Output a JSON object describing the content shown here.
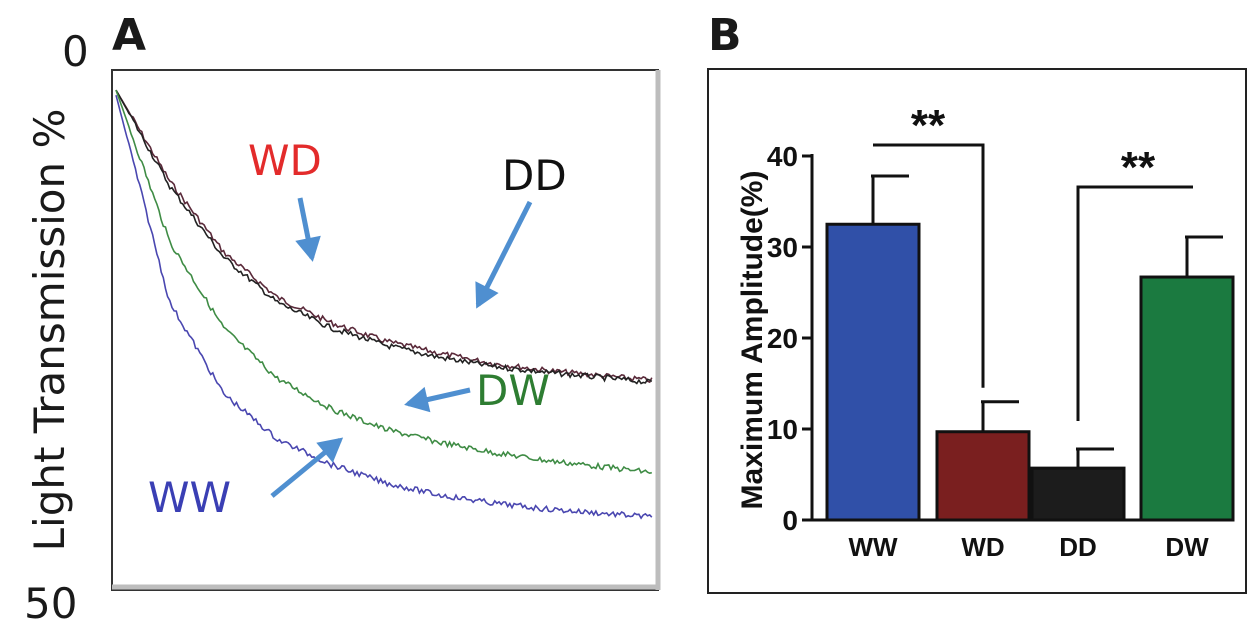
{
  "chart_data": [
    {
      "panel": "A",
      "type": "line",
      "ylabel": "Light Transmission %",
      "y_ticks": [
        "0",
        "50"
      ],
      "ylim": [
        0,
        50
      ],
      "y_inverted": true,
      "x_ticks": [],
      "grid": false,
      "legend": "inline labels with arrows",
      "series": [
        {
          "name": "WD",
          "color": "#e32b2b",
          "line_color": "#5a2a3a",
          "x": [
            0,
            10,
            20,
            30,
            40,
            50,
            60,
            70,
            80,
            90,
            100
          ],
          "values": [
            1,
            10,
            17,
            21.5,
            24,
            25.8,
            27,
            28,
            28.7,
            29.2,
            29.7
          ]
        },
        {
          "name": "DD",
          "color": "#111111",
          "line_color": "#222222",
          "x": [
            0,
            10,
            20,
            30,
            40,
            50,
            60,
            70,
            80,
            90,
            100
          ],
          "values": [
            1,
            10.5,
            17.5,
            22,
            24.5,
            26.2,
            27.4,
            28.3,
            28.9,
            29.4,
            29.9
          ]
        },
        {
          "name": "DW",
          "color": "#2e7d32",
          "line_color": "#3f8c45",
          "x": [
            0,
            10,
            20,
            30,
            40,
            50,
            60,
            70,
            80,
            90,
            100
          ],
          "values": [
            1,
            16,
            24.5,
            29.5,
            32.5,
            34.5,
            35.8,
            36.8,
            37.6,
            38.2,
            38.8
          ]
        },
        {
          "name": "WW",
          "color": "#3a3fb4",
          "line_color": "#4a47b0",
          "x": [
            0,
            10,
            20,
            30,
            40,
            50,
            60,
            70,
            80,
            90,
            100
          ],
          "values": [
            1.5,
            22,
            31,
            35.5,
            38,
            39.8,
            41,
            41.8,
            42.4,
            42.8,
            43.2
          ]
        }
      ]
    },
    {
      "panel": "B",
      "type": "bar",
      "ylabel": "Maximum Amplitude(%)",
      "categories": [
        "WW",
        "WD",
        "DD",
        "DW"
      ],
      "values": [
        32.5,
        9.7,
        5.7,
        26.7
      ],
      "errors": [
        5.3,
        3.3,
        2.1,
        4.4
      ],
      "colors": [
        "#3050a8",
        "#7a1f1f",
        "#1c1c1c",
        "#1b7a40"
      ],
      "ylim": [
        0,
        42
      ],
      "y_ticks": [
        "0",
        "10",
        "20",
        "30",
        "40"
      ],
      "significance": [
        {
          "from": "WW",
          "to": "WD",
          "label": "**"
        },
        {
          "from": "DD",
          "to": "DW",
          "label": "**"
        }
      ]
    }
  ],
  "panel_letters": {
    "a": "A",
    "b": "B"
  }
}
